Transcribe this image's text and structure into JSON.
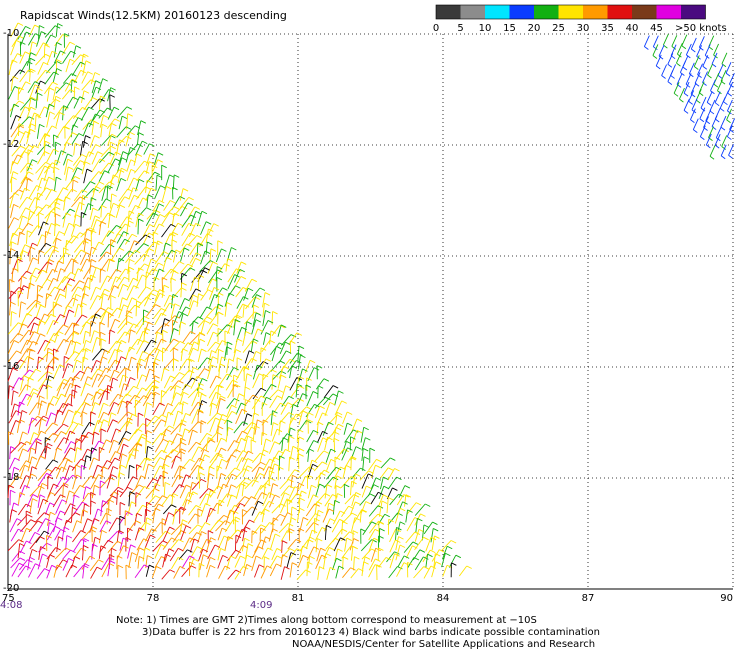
{
  "title": "Rapidscat Winds(12.5KM) 20160123 descending",
  "legend": {
    "labels": [
      "0",
      "5",
      "10",
      "15",
      "20",
      "25",
      "30",
      "35",
      "40",
      "45",
      ">50 knots"
    ],
    "colors": [
      "#3a3a3a",
      "#8c8c8c",
      "#00e5ff",
      "#0a3cff",
      "#12b012",
      "#ffe400",
      "#ff9a00",
      "#e01010",
      "#7a3a1a",
      "#e000e0",
      "#4a0a80"
    ]
  },
  "axes": {
    "lon_labels": [
      "75",
      "78",
      "81",
      "84",
      "87",
      "90"
    ],
    "lat_labels": [
      "-10",
      "-12",
      "-14",
      "-16",
      "-18",
      "-20"
    ],
    "time_labels": [
      "4:08",
      "4:09"
    ]
  },
  "notes": {
    "line1": "Note: 1) Times are GMT 2)Times along bottom correspond to measurement at −10S",
    "line2": "3)Data buffer is 22 hrs from 20160123 4) Black wind barbs indicate possible contamination",
    "line3": "NOAA/NESDIS/Center for Satellite Applications and Research"
  }
}
